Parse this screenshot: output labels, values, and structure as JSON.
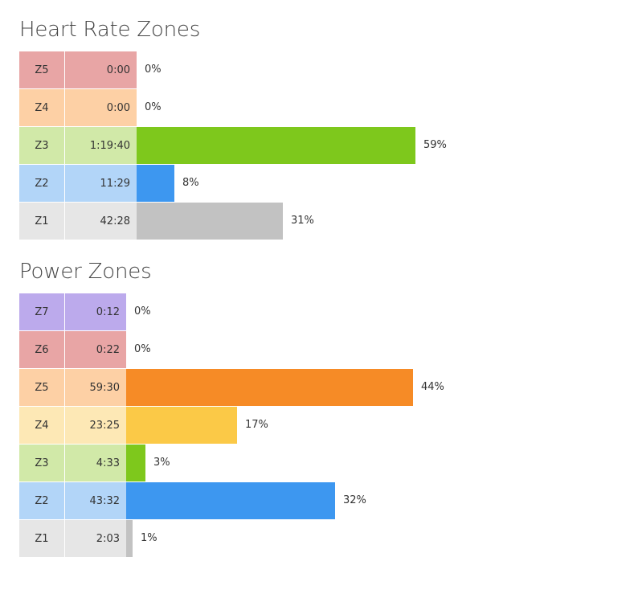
{
  "chart_data": [
    {
      "type": "bar",
      "title": "Heart Rate Zones",
      "categories": [
        "Z5",
        "Z4",
        "Z3",
        "Z2",
        "Z1"
      ],
      "times": [
        "0:00",
        "0:00",
        "1:19:40",
        "11:29",
        "42:28"
      ],
      "values": [
        0,
        0,
        59,
        8,
        31
      ],
      "value_labels": [
        "0%",
        "0%",
        "59%",
        "8%",
        "31%"
      ],
      "xlim": [
        0,
        100
      ],
      "bar_colors": [
        "#e8a5a5",
        "#fdd0a5",
        "#7ec81c",
        "#3d97f0",
        "#c2c2c2"
      ],
      "label_colors": [
        "#e8a5a5",
        "#fdd0a5",
        "#d1e9a8",
        "#b2d5f8",
        "#e6e6e6"
      ]
    },
    {
      "type": "bar",
      "title": "Power Zones",
      "categories": [
        "Z7",
        "Z6",
        "Z5",
        "Z4",
        "Z3",
        "Z2",
        "Z1"
      ],
      "times": [
        "0:12",
        "0:22",
        "59:30",
        "23:25",
        "4:33",
        "43:32",
        "2:03"
      ],
      "values": [
        0,
        0,
        44,
        17,
        3,
        32,
        1
      ],
      "value_labels": [
        "0%",
        "0%",
        "44%",
        "17%",
        "3%",
        "32%",
        "1%"
      ],
      "xlim": [
        0,
        100
      ],
      "bar_colors": [
        "#bcaaec",
        "#e8a5a5",
        "#f68b26",
        "#fbc947",
        "#7ec81c",
        "#3d97f0",
        "#c2c2c2"
      ],
      "label_colors": [
        "#bcaaec",
        "#e8a5a5",
        "#fdd0a5",
        "#fde8b5",
        "#d1e9a8",
        "#b2d5f8",
        "#e6e6e6"
      ]
    }
  ]
}
